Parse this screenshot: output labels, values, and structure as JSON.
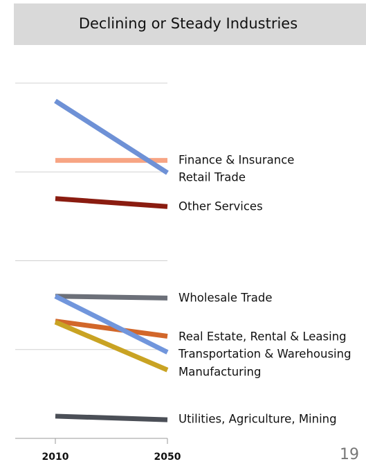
{
  "chart_data": {
    "type": "line",
    "title": "Declining or Steady Industries",
    "categories": [
      "2010",
      "2050"
    ],
    "ylim": [
      0,
      4
    ],
    "yticks": [
      1,
      2,
      3,
      4
    ],
    "grid": true,
    "series": [
      {
        "name": "Finance & Insurance",
        "color": "#f7a584",
        "values": [
          3.13,
          3.13
        ]
      },
      {
        "name": "Retail Trade",
        "color": "#6e91d6",
        "values": [
          3.8,
          2.99
        ]
      },
      {
        "name": "Other Services",
        "color": "#8a1c10",
        "values": [
          2.7,
          2.61
        ]
      },
      {
        "name": "Wholesale Trade",
        "color": "#6c7079",
        "values": [
          1.6,
          1.58
        ]
      },
      {
        "name": "Real Estate,  Rental & Leasing",
        "color": "#d2672a",
        "values": [
          1.32,
          1.15
        ]
      },
      {
        "name": "Transportation & Warehousing",
        "color": "#7196dc",
        "values": [
          1.6,
          0.97
        ]
      },
      {
        "name": "Manufacturing",
        "color": "#c9a323",
        "values": [
          1.31,
          0.77
        ]
      },
      {
        "name": "Utilities, Agriculture, Mining",
        "color": "#4b4f57",
        "values": [
          0.25,
          0.21
        ]
      }
    ],
    "page_number": "19"
  }
}
